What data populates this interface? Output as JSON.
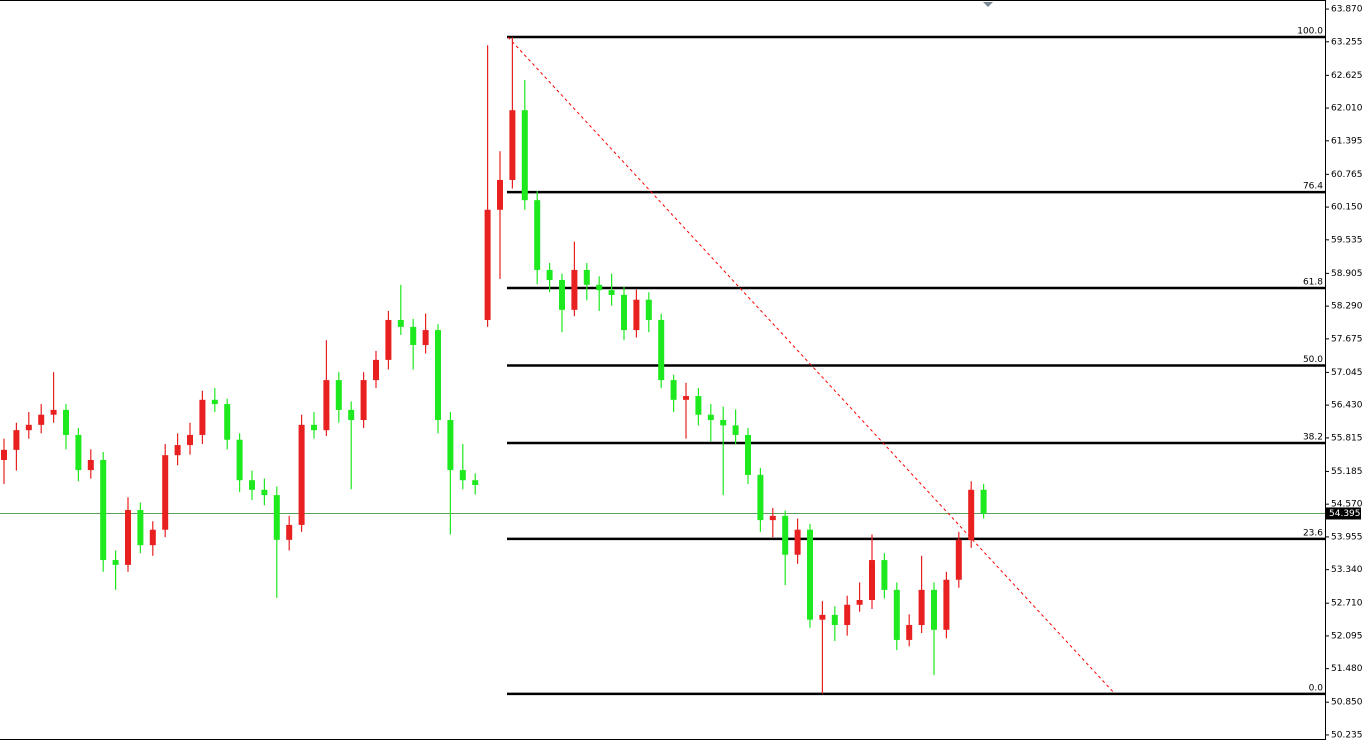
{
  "chart_data": {
    "type": "candlestick",
    "bull_color": "#e8201f",
    "bear_color": "#1ee81e",
    "ylim": [
      50.14,
      64.04
    ],
    "yticks": [
      {
        "value": 63.87,
        "label": "63.870"
      },
      {
        "value": 63.255,
        "label": "63.255"
      },
      {
        "value": 62.625,
        "label": "62.625"
      },
      {
        "value": 62.01,
        "label": "62.010"
      },
      {
        "value": 61.395,
        "label": "61.395"
      },
      {
        "value": 60.765,
        "label": "60.765"
      },
      {
        "value": 60.15,
        "label": "60.150"
      },
      {
        "value": 59.535,
        "label": "59.535"
      },
      {
        "value": 58.905,
        "label": "58.905"
      },
      {
        "value": 58.29,
        "label": "58.290"
      },
      {
        "value": 57.675,
        "label": "57.675"
      },
      {
        "value": 57.045,
        "label": "57.045"
      },
      {
        "value": 56.43,
        "label": "56.430"
      },
      {
        "value": 55.815,
        "label": "55.815"
      },
      {
        "value": 55.185,
        "label": "55.185"
      },
      {
        "value": 54.57,
        "label": "54.570"
      },
      {
        "value": 53.955,
        "label": "53.955"
      },
      {
        "value": 53.34,
        "label": "53.340"
      },
      {
        "value": 52.71,
        "label": "52.710"
      },
      {
        "value": 52.095,
        "label": "52.095"
      },
      {
        "value": 51.48,
        "label": "51.480"
      },
      {
        "value": 50.85,
        "label": "50.850"
      },
      {
        "value": 50.235,
        "label": "50.235"
      }
    ],
    "current_price": {
      "value": 54.395,
      "label": "54.395",
      "color": "#5aa05a"
    },
    "fib_levels": [
      {
        "value": 63.344,
        "label": "100.0"
      },
      {
        "value": 60.432,
        "label": "76.4"
      },
      {
        "value": 58.631,
        "label": "61.8"
      },
      {
        "value": 57.175,
        "label": "50.0"
      },
      {
        "value": 55.719,
        "label": "38.2"
      },
      {
        "value": 53.918,
        "label": "23.6"
      },
      {
        "value": 51.006,
        "label": "0.0"
      }
    ],
    "trendline": {
      "from": 63.344,
      "to": 51.006,
      "color": "#ff0000"
    },
    "candles": [
      {
        "open": 55.4,
        "high": 55.8,
        "low": 54.95,
        "close": 55.59
      },
      {
        "open": 55.59,
        "high": 56.1,
        "low": 55.2,
        "close": 55.96
      },
      {
        "open": 55.96,
        "high": 56.3,
        "low": 55.8,
        "close": 56.06
      },
      {
        "open": 56.06,
        "high": 56.45,
        "low": 55.9,
        "close": 56.25
      },
      {
        "open": 56.25,
        "high": 57.05,
        "low": 56.1,
        "close": 56.34
      },
      {
        "open": 56.34,
        "high": 56.45,
        "low": 55.6,
        "close": 55.87
      },
      {
        "open": 55.87,
        "high": 56.0,
        "low": 55.0,
        "close": 55.21
      },
      {
        "open": 55.21,
        "high": 55.6,
        "low": 55.05,
        "close": 55.4
      },
      {
        "open": 55.4,
        "high": 55.55,
        "low": 53.3,
        "close": 53.52
      },
      {
        "open": 53.52,
        "high": 53.7,
        "low": 52.96,
        "close": 53.43
      },
      {
        "open": 53.43,
        "high": 54.7,
        "low": 53.3,
        "close": 54.46
      },
      {
        "open": 54.46,
        "high": 54.6,
        "low": 53.65,
        "close": 53.8
      },
      {
        "open": 53.8,
        "high": 54.25,
        "low": 53.6,
        "close": 54.09
      },
      {
        "open": 54.09,
        "high": 55.7,
        "low": 53.95,
        "close": 55.49
      },
      {
        "open": 55.49,
        "high": 55.9,
        "low": 55.3,
        "close": 55.68
      },
      {
        "open": 55.68,
        "high": 56.1,
        "low": 55.5,
        "close": 55.87
      },
      {
        "open": 55.87,
        "high": 56.7,
        "low": 55.7,
        "close": 56.53
      },
      {
        "open": 56.53,
        "high": 56.75,
        "low": 56.3,
        "close": 56.45
      },
      {
        "open": 56.45,
        "high": 56.55,
        "low": 55.6,
        "close": 55.78
      },
      {
        "open": 55.78,
        "high": 55.9,
        "low": 54.8,
        "close": 55.02
      },
      {
        "open": 55.02,
        "high": 55.2,
        "low": 54.65,
        "close": 54.84
      },
      {
        "open": 54.84,
        "high": 55.05,
        "low": 54.55,
        "close": 54.74
      },
      {
        "open": 54.74,
        "high": 54.9,
        "low": 52.81,
        "close": 53.9
      },
      {
        "open": 53.9,
        "high": 54.35,
        "low": 53.7,
        "close": 54.18
      },
      {
        "open": 54.18,
        "high": 56.25,
        "low": 54.05,
        "close": 56.06
      },
      {
        "open": 56.06,
        "high": 56.3,
        "low": 55.8,
        "close": 55.96
      },
      {
        "open": 55.96,
        "high": 57.65,
        "low": 55.85,
        "close": 56.9
      },
      {
        "open": 56.9,
        "high": 57.05,
        "low": 56.1,
        "close": 56.34
      },
      {
        "open": 56.34,
        "high": 56.5,
        "low": 54.85,
        "close": 56.15
      },
      {
        "open": 56.15,
        "high": 57.05,
        "low": 56.0,
        "close": 56.9
      },
      {
        "open": 56.9,
        "high": 57.45,
        "low": 56.75,
        "close": 57.28
      },
      {
        "open": 57.28,
        "high": 58.2,
        "low": 57.1,
        "close": 58.03
      },
      {
        "open": 58.03,
        "high": 58.69,
        "low": 57.75,
        "close": 57.9
      },
      {
        "open": 57.9,
        "high": 58.05,
        "low": 57.1,
        "close": 57.56
      },
      {
        "open": 57.56,
        "high": 58.15,
        "low": 57.4,
        "close": 57.84
      },
      {
        "open": 57.84,
        "high": 57.95,
        "low": 55.9,
        "close": 56.15
      },
      {
        "open": 56.15,
        "high": 56.3,
        "low": 54.0,
        "close": 55.21
      },
      {
        "open": 55.21,
        "high": 55.7,
        "low": 54.85,
        "close": 55.02
      },
      {
        "open": 55.02,
        "high": 55.15,
        "low": 54.75,
        "close": 54.93
      },
      {
        "open": 58.03,
        "high": 63.19,
        "low": 57.9,
        "close": 60.1
      },
      {
        "open": 60.1,
        "high": 61.2,
        "low": 58.8,
        "close": 60.66
      },
      {
        "open": 60.66,
        "high": 63.34,
        "low": 60.5,
        "close": 61.97
      },
      {
        "open": 61.97,
        "high": 62.54,
        "low": 60.1,
        "close": 60.28
      },
      {
        "open": 60.28,
        "high": 60.45,
        "low": 58.7,
        "close": 58.97
      },
      {
        "open": 58.97,
        "high": 59.1,
        "low": 58.55,
        "close": 58.78
      },
      {
        "open": 58.78,
        "high": 58.9,
        "low": 57.8,
        "close": 58.22
      },
      {
        "open": 58.22,
        "high": 59.5,
        "low": 58.1,
        "close": 58.97
      },
      {
        "open": 58.97,
        "high": 59.1,
        "low": 58.4,
        "close": 58.69
      },
      {
        "open": 58.69,
        "high": 58.85,
        "low": 58.2,
        "close": 58.59
      },
      {
        "open": 58.59,
        "high": 58.9,
        "low": 58.3,
        "close": 58.5
      },
      {
        "open": 58.5,
        "high": 58.65,
        "low": 57.65,
        "close": 57.84
      },
      {
        "open": 57.84,
        "high": 58.6,
        "low": 57.7,
        "close": 58.41
      },
      {
        "open": 58.41,
        "high": 58.55,
        "low": 57.8,
        "close": 58.03
      },
      {
        "open": 58.03,
        "high": 58.15,
        "low": 56.75,
        "close": 56.9
      },
      {
        "open": 56.9,
        "high": 57.0,
        "low": 56.3,
        "close": 56.53
      },
      {
        "open": 56.53,
        "high": 56.85,
        "low": 55.8,
        "close": 56.6
      },
      {
        "open": 56.6,
        "high": 56.75,
        "low": 56.05,
        "close": 56.25
      },
      {
        "open": 56.25,
        "high": 56.45,
        "low": 55.75,
        "close": 56.15
      },
      {
        "open": 56.15,
        "high": 56.4,
        "low": 54.74,
        "close": 56.05
      },
      {
        "open": 56.05,
        "high": 56.35,
        "low": 55.7,
        "close": 55.87
      },
      {
        "open": 55.87,
        "high": 56.0,
        "low": 54.95,
        "close": 55.12
      },
      {
        "open": 55.12,
        "high": 55.25,
        "low": 54.05,
        "close": 54.27
      },
      {
        "open": 54.27,
        "high": 54.5,
        "low": 53.95,
        "close": 54.35
      },
      {
        "open": 54.35,
        "high": 54.45,
        "low": 53.05,
        "close": 53.62
      },
      {
        "open": 53.62,
        "high": 54.3,
        "low": 53.45,
        "close": 54.09
      },
      {
        "open": 54.09,
        "high": 54.2,
        "low": 52.25,
        "close": 52.4
      },
      {
        "open": 52.4,
        "high": 52.75,
        "low": 51.01,
        "close": 52.49
      },
      {
        "open": 52.49,
        "high": 52.65,
        "low": 52.0,
        "close": 52.3
      },
      {
        "open": 52.3,
        "high": 52.85,
        "low": 52.1,
        "close": 52.68
      },
      {
        "open": 52.68,
        "high": 53.1,
        "low": 52.55,
        "close": 52.77
      },
      {
        "open": 52.77,
        "high": 54.0,
        "low": 52.6,
        "close": 53.52
      },
      {
        "open": 53.52,
        "high": 53.65,
        "low": 52.8,
        "close": 52.96
      },
      {
        "open": 52.96,
        "high": 53.1,
        "low": 51.83,
        "close": 52.02
      },
      {
        "open": 52.02,
        "high": 52.5,
        "low": 51.9,
        "close": 52.3
      },
      {
        "open": 52.3,
        "high": 53.6,
        "low": 52.15,
        "close": 52.96
      },
      {
        "open": 52.96,
        "high": 53.1,
        "low": 51.36,
        "close": 52.21
      },
      {
        "open": 52.21,
        "high": 53.3,
        "low": 52.05,
        "close": 53.15
      },
      {
        "open": 53.15,
        "high": 54.05,
        "low": 53.0,
        "close": 53.9
      },
      {
        "open": 53.9,
        "high": 55.0,
        "low": 53.75,
        "close": 54.84
      },
      {
        "open": 54.84,
        "high": 54.95,
        "low": 54.3,
        "close": 54.395
      }
    ]
  }
}
